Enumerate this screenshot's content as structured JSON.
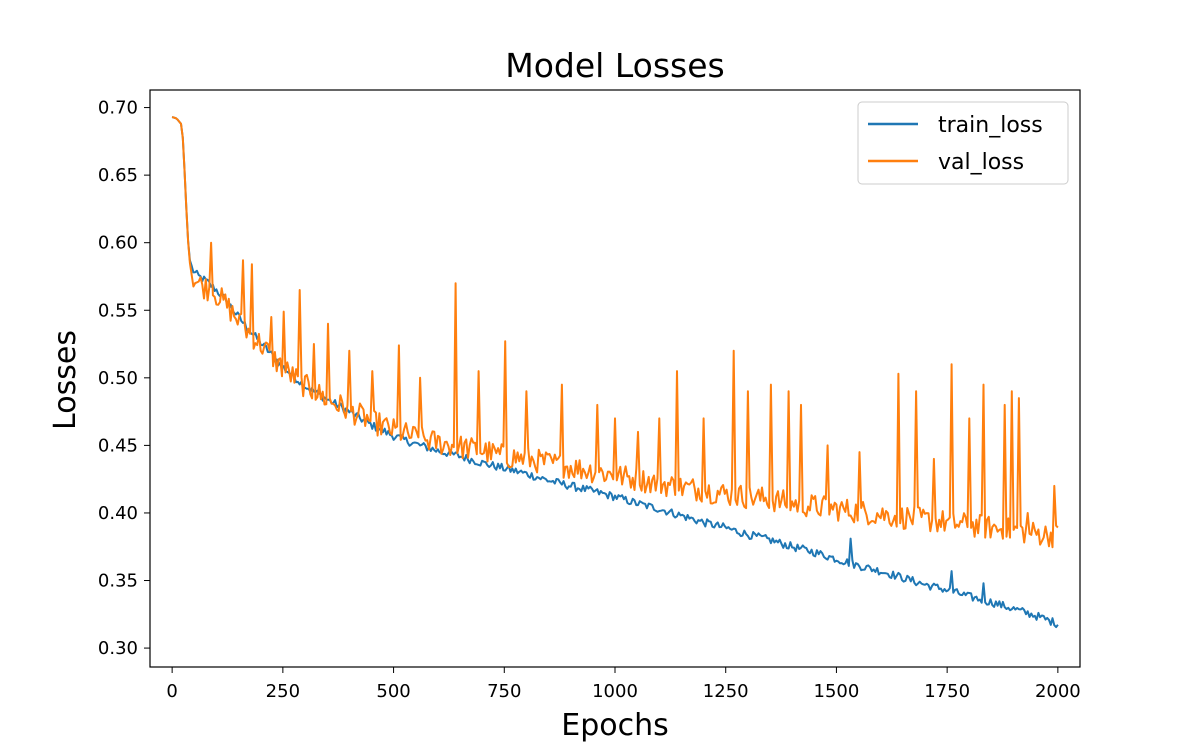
{
  "chart_data": {
    "type": "line",
    "title": "Model Losses",
    "xlabel": "Epochs",
    "ylabel": "Losses",
    "xlim": [
      -50,
      2050
    ],
    "ylim": [
      0.286,
      0.713
    ],
    "xticks": [
      0,
      250,
      500,
      750,
      1000,
      1250,
      1500,
      1750,
      2000
    ],
    "yticks": [
      0.3,
      0.35,
      0.4,
      0.45,
      0.5,
      0.55,
      0.6,
      0.65,
      0.7
    ],
    "grid": false,
    "legend_position": "top-right",
    "series": [
      {
        "name": "train_loss",
        "color": "#1f77b4",
        "x": [
          0,
          10,
          20,
          25,
          30,
          35,
          40,
          45,
          50,
          60,
          75,
          100,
          125,
          150,
          175,
          200,
          250,
          300,
          350,
          400,
          450,
          500,
          550,
          600,
          650,
          700,
          750,
          800,
          850,
          900,
          950,
          1000,
          1050,
          1100,
          1150,
          1200,
          1250,
          1300,
          1350,
          1400,
          1450,
          1500,
          1550,
          1600,
          1650,
          1700,
          1750,
          1800,
          1850,
          1900,
          1950,
          2000
        ],
        "y": [
          0.693,
          0.692,
          0.688,
          0.675,
          0.64,
          0.605,
          0.587,
          0.581,
          0.578,
          0.575,
          0.572,
          0.565,
          0.556,
          0.545,
          0.535,
          0.526,
          0.508,
          0.494,
          0.484,
          0.475,
          0.465,
          0.457,
          0.451,
          0.446,
          0.442,
          0.437,
          0.433,
          0.429,
          0.424,
          0.42,
          0.416,
          0.412,
          0.407,
          0.403,
          0.398,
          0.393,
          0.389,
          0.384,
          0.38,
          0.375,
          0.371,
          0.366,
          0.361,
          0.357,
          0.352,
          0.347,
          0.343,
          0.338,
          0.334,
          0.329,
          0.324,
          0.318
        ],
        "noise": 0.003,
        "spikes": [
          [
            1530,
            0.381
          ],
          [
            1760,
            0.357
          ],
          [
            1830,
            0.348
          ]
        ]
      },
      {
        "name": "val_loss",
        "color": "#ff7f0e",
        "x": [
          0,
          10,
          20,
          25,
          30,
          35,
          40,
          45,
          50,
          60,
          75,
          100,
          125,
          150,
          175,
          200,
          250,
          300,
          350,
          400,
          450,
          500,
          550,
          600,
          650,
          700,
          750,
          800,
          850,
          900,
          950,
          1000,
          1050,
          1100,
          1150,
          1200,
          1250,
          1300,
          1350,
          1400,
          1450,
          1500,
          1550,
          1600,
          1650,
          1700,
          1750,
          1800,
          1850,
          1900,
          1950,
          2000
        ],
        "y": [
          0.693,
          0.692,
          0.688,
          0.675,
          0.64,
          0.605,
          0.585,
          0.577,
          0.573,
          0.57,
          0.567,
          0.562,
          0.553,
          0.542,
          0.533,
          0.525,
          0.507,
          0.494,
          0.484,
          0.476,
          0.468,
          0.461,
          0.456,
          0.452,
          0.449,
          0.446,
          0.442,
          0.44,
          0.437,
          0.434,
          0.431,
          0.428,
          0.425,
          0.422,
          0.419,
          0.417,
          0.414,
          0.412,
          0.41,
          0.407,
          0.405,
          0.403,
          0.401,
          0.399,
          0.397,
          0.395,
          0.393,
          0.391,
          0.389,
          0.387,
          0.385,
          0.383
        ],
        "noise": 0.009,
        "spikes": [
          [
            88,
            0.6
          ],
          [
            160,
            0.587
          ],
          [
            180,
            0.584
          ],
          [
            225,
            0.545
          ],
          [
            250,
            0.549
          ],
          [
            288,
            0.565
          ],
          [
            320,
            0.525
          ],
          [
            350,
            0.54
          ],
          [
            400,
            0.52
          ],
          [
            450,
            0.505
          ],
          [
            510,
            0.524
          ],
          [
            560,
            0.5
          ],
          [
            640,
            0.57
          ],
          [
            690,
            0.505
          ],
          [
            750,
            0.527
          ],
          [
            800,
            0.49
          ],
          [
            880,
            0.495
          ],
          [
            960,
            0.48
          ],
          [
            1000,
            0.47
          ],
          [
            1050,
            0.46
          ],
          [
            1100,
            0.47
          ],
          [
            1140,
            0.505
          ],
          [
            1200,
            0.47
          ],
          [
            1267,
            0.52
          ],
          [
            1300,
            0.49
          ],
          [
            1350,
            0.495
          ],
          [
            1390,
            0.49
          ],
          [
            1420,
            0.48
          ],
          [
            1480,
            0.45
          ],
          [
            1550,
            0.445
          ],
          [
            1640,
            0.503
          ],
          [
            1680,
            0.49
          ],
          [
            1720,
            0.44
          ],
          [
            1760,
            0.51
          ],
          [
            1800,
            0.47
          ],
          [
            1830,
            0.495
          ],
          [
            1880,
            0.48
          ],
          [
            1895,
            0.49
          ],
          [
            1910,
            0.485
          ],
          [
            1930,
            0.4
          ],
          [
            1990,
            0.42
          ]
        ]
      }
    ]
  }
}
